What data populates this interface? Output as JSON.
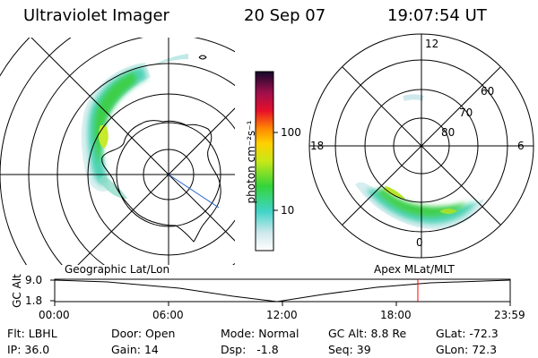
{
  "header": {
    "instrument": "Ultraviolet Imager",
    "date": "20 Sep 07",
    "time": "19:07:54 UT"
  },
  "colorbar": {
    "unit_label": "photon cm⁻²s⁻¹",
    "ticks": [
      "100",
      "10"
    ],
    "scale": "log"
  },
  "polar_plot": {
    "mlt_labels": [
      "12",
      "18",
      "6",
      "0"
    ],
    "mlat_labels": [
      "60",
      "70",
      "80"
    ]
  },
  "captions": {
    "left": "Geographic Lat/Lon",
    "right": "Apex MLat/MLT"
  },
  "altitude_plot": {
    "axis_label": "GC Alt",
    "y_ticks": [
      "9.0",
      "1.8"
    ],
    "x_ticks": [
      "00:00",
      "06:00",
      "12:00",
      "18:00",
      "23:59"
    ],
    "current_time_marker": "19:07",
    "marker_color": "#ff0000"
  },
  "info": {
    "row1": [
      {
        "label": "Flt:",
        "value": "LBHL"
      },
      {
        "label": "Door:",
        "value": "Open"
      },
      {
        "label": "Mode:",
        "value": "Normal"
      },
      {
        "label": "GC Alt:",
        "value": "8.8 Re"
      },
      {
        "label": "GLat:",
        "value": "-72.3"
      }
    ],
    "row2": [
      {
        "label": "IP:",
        "value": "36.0"
      },
      {
        "label": "Gain:",
        "value": "14"
      },
      {
        "label": "Dsp:",
        "value": "-1.8"
      },
      {
        "label": "Seq:",
        "value": "39"
      },
      {
        "label": "GLon:",
        "value": "72.3"
      }
    ]
  }
}
